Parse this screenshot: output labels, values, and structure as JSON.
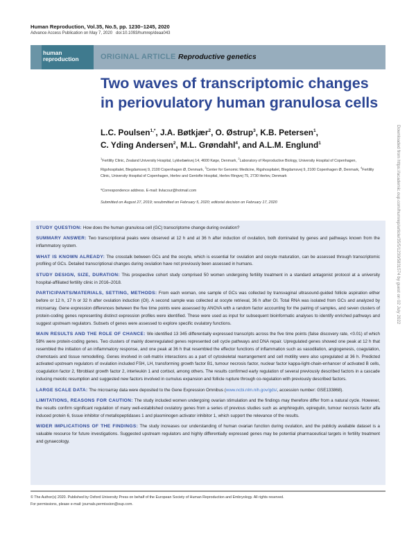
{
  "journal": {
    "citation": "Human Reproduction, Vol.35, No.5, pp. 1230–1245, 2020",
    "advance_access": "Advance Access Publication on May 7, 2020",
    "doi": "doi:10.1093/humrep/deaa043"
  },
  "banner": {
    "logo_line1": "human",
    "logo_line2": "reproduction",
    "article_type": "ORIGINAL ARTICLE",
    "section": "Reproductive genetics"
  },
  "title_line1": "Two waves of transcriptomic changes",
  "title_line2": "in periovulatory human granulosa cells",
  "authors": [
    {
      "name": "L.C. Poulsen",
      "sup": "1,*"
    },
    {
      "name": "J.A. Bøtkjær",
      "sup": "2"
    },
    {
      "name": "O. Østrup",
      "sup": "3"
    },
    {
      "name": "K.B. Petersen",
      "sup": "1"
    },
    {
      "name": "C. Yding Andersen",
      "sup": "2"
    },
    {
      "name": "M.L. Grøndahl",
      "sup": "4"
    },
    {
      "name": "and A.L.M. Englund",
      "sup": "1"
    }
  ],
  "affiliations": [
    {
      "sup": "1",
      "text": "Fertility Clinic, Zealand University Hospital, Lykkebækvej 14, 4600 Køge, Denmark, "
    },
    {
      "sup": "2",
      "text": "Laboratory of Reproductive Biology, University Hospital of Copenhagen, Rigshospitalet, Blegdamsvej 9, 2100 Copenhagen Ø, Denmark, "
    },
    {
      "sup": "3",
      "text": "Center for Genomic Medicine, Rigshospitalet, Blegdamsvej 9, 2100 Copenhagen Ø, Denmark, "
    },
    {
      "sup": "4",
      "text": "Fertility Clinic, University Hospital of Copenhagen, Herlev and Gentofte Hospital, Herlev Ringvej 75, 2730 Herlev, Denmark"
    }
  ],
  "correspondence": "*Correspondence address. E-mail: livlacour@hotmail.com",
  "submission": "Submitted on August 27, 2019; resubmitted on February 5, 2020; editorial decision on February 17, 2020",
  "abstract": [
    {
      "head": "STUDY QUESTION:",
      "text": " How does the human granulosa cell (GC) transcriptome change during ovulation?"
    },
    {
      "head": "SUMMARY ANSWER:",
      "text": " Two transcriptional peaks were observed at 12 h and at 36 h after induction of ovulation, both dominated by genes and pathways known from the inflammatory system."
    },
    {
      "head": "WHAT IS KNOWN ALREADY:",
      "text": " The crosstalk between GCs and the oocyte, which is essential for ovulation and oocyte maturation, can be assessed through transcriptomic profiling of GCs. Detailed transcriptional changes during ovulation have not previously been assessed in humans."
    },
    {
      "head": "STUDY DESIGN, SIZE, DURATION:",
      "text": " This prospective cohort study comprised 50 women undergoing fertility treatment in a standard antagonist protocol at a university hospital-affiliated fertility clinic in 2016–2018."
    },
    {
      "head": "PARTICIPANTS/MATERIALS, SETTING, METHODS:",
      "text": " From each woman, one sample of GCs was collected by transvaginal ultrasound-guided follicle aspiration either before or 12 h, 17 h or 32 h after ovulation induction (OI). A second sample was collected at oocyte retrieval, 36 h after OI. Total RNA was isolated from GCs and analyzed by microarray. Gene expression differences between the five time points were assessed by ANOVA with a random factor accounting for the pairing of samples, and seven clusters of protein-coding genes representing distinct expression profiles were identified. These were used as input for subsequent bioinformatic analyses to identify enriched pathways and suggest upstream regulators. Subsets of genes were assessed to explore specific ovulatory functions."
    },
    {
      "head": "MAIN RESULTS AND THE ROLE OF CHANCE:",
      "text": " We identified 13 345 differentially expressed transcripts across the five time points (false discovery rate, <0.01) of which 58% were protein-coding genes. Two clusters of mainly downregulated genes represented cell cycle pathways and DNA repair. Upregulated genes showed one peak at 12 h that resembled the initiation of an inflammatory response, and one peak at 36 h that resembled the effector functions of inflammation such as vasodilation, angiogenesis, coagulation, chemotaxis and tissue remodelling. Genes involved in cell-matrix interactions as a part of cytoskeletal rearrangement and cell motility were also upregulated at 36 h. Predicted activated upstream regulators of ovulation included FSH, LH, transforming growth factor B1, tumour necrosis factor, nuclear factor kappa-light-chain-enhancer of activated B cells, coagulation factor 2, fibroblast growth factor 2, interleukin 1 and cortisol, among others. The results confirmed early regulation of several previously described factors in a cascade inducing meiotic resumption and suggested new factors involved in cumulus expansion and follicle rupture through co-regulation with previously described factors."
    },
    {
      "head": "LARGE SCALE DATA:",
      "text": " The microarray data were deposited to the Gene Expression Omnibus (",
      "link": "www.ncbi.nlm.nih.gov/gds/",
      "tail": ", accession number: GSE133868)."
    },
    {
      "head": "LIMITATIONS, REASONS FOR CAUTION:",
      "text": " The study included women undergoing ovarian stimulation and the findings may therefore differ from a natural cycle. However, the results confirm significant regulation of many well-established ovulatory genes from a series of previous studies such as amphiregulin, epiregulin, tumour necrosis factor alfa induced protein 6, tissue inhibitor of metallopeptidases 1 and plasminogen activator inhibitor 1, which support the relevance of the results."
    },
    {
      "head": "WIDER IMPLICATIONS OF THE FINDINGS:",
      "text": " The study increases our understanding of human ovarian function during ovulation, and the publicly available dataset is a valuable resource for future investigations. Suggested upstream regulators and highly differentially expressed genes may be potential pharmaceutical targets in fertility treatment and gynaecology."
    }
  ],
  "footer": {
    "copyright": "© The Author(s) 2020. Published by Oxford University Press on behalf of the European Society of Human Reproduction and Embryology. All rights reserved.",
    "permissions": "For permissions, please e-mail: journals.permission@oup.com."
  },
  "side_note": "Downloaded from https://academic.oup.com/humrep/article/35/5/1230/5831574 by guest on 02 July 2022",
  "colors": {
    "title": "#2b4593",
    "banner": "#97adbd",
    "logo": "#3f7a8e",
    "abstract_bg": "#e6ebf5"
  }
}
